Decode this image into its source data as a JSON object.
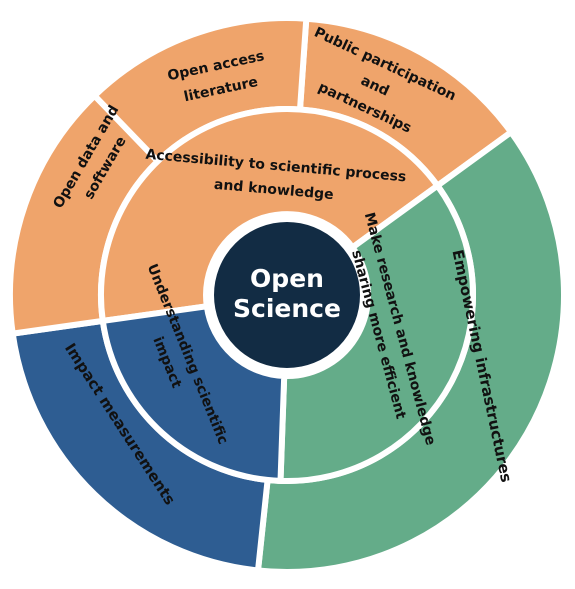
{
  "colors": {
    "orange": "#EFA46B",
    "green": "#64AC89",
    "blue": "#2E5D92",
    "center": "#122C44",
    "text": "#111111",
    "center_text": "#FFFFFF"
  },
  "center": {
    "line1": "Open",
    "line2": "Science"
  },
  "outer_ring": [
    {
      "id": "public",
      "lines": [
        "Public participation",
        "and",
        "partnerships"
      ],
      "color": "orange"
    },
    {
      "id": "infra",
      "lines": [
        "Empowering infrastructures"
      ],
      "color": "green"
    },
    {
      "id": "impact-meas",
      "lines": [
        "Impact measurements"
      ],
      "color": "blue"
    },
    {
      "id": "data",
      "lines": [
        "Open data and",
        "software"
      ],
      "color": "orange"
    },
    {
      "id": "literature",
      "lines": [
        "Open access",
        "literature"
      ],
      "color": "orange"
    }
  ],
  "inner_ring": [
    {
      "id": "access",
      "lines": [
        "Accessibility to scientific process",
        "and knowledge"
      ],
      "color": "orange"
    },
    {
      "id": "efficient",
      "lines": [
        "Make research and knowledge",
        "sharing more efficient"
      ],
      "color": "green"
    },
    {
      "id": "understanding",
      "lines": [
        "Understanding scientific",
        "impact"
      ],
      "color": "blue"
    }
  ]
}
